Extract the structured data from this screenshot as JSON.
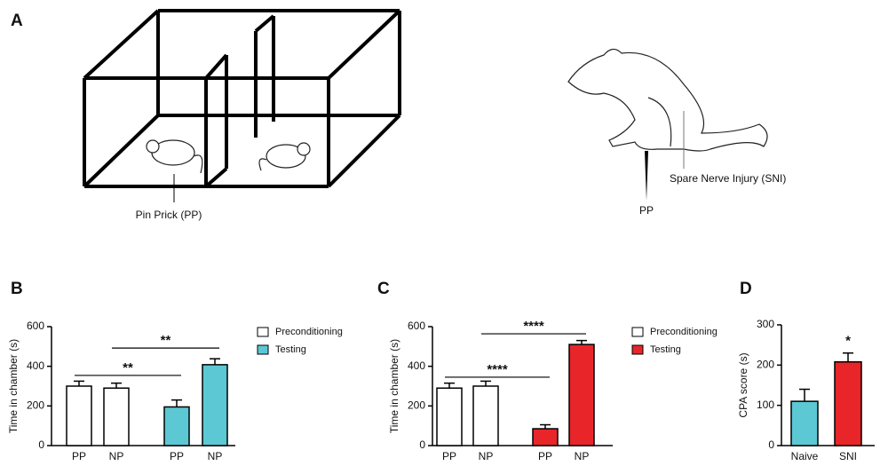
{
  "panel_a": {
    "label": "A",
    "left_caption": "Pin Prick (PP)",
    "right_pp": "PP",
    "right_caption": "Spare Nerve Injury (SNI)"
  },
  "chart_data": [
    {
      "type": "bar",
      "panel": "B",
      "ylabel": "Time in chamber (s)",
      "ylim": [
        0,
        600
      ],
      "yticks": [
        0,
        200,
        400,
        600
      ],
      "categories": [
        "PP",
        "NP",
        "PP",
        "NP"
      ],
      "series": [
        {
          "name": "Preconditioning",
          "color": "#ffffff",
          "values": [
            300,
            290,
            null,
            null
          ],
          "errors": [
            25,
            25,
            null,
            null
          ]
        },
        {
          "name": "Testing",
          "color": "#5bc8d4",
          "values": [
            null,
            null,
            195,
            408
          ],
          "errors": [
            null,
            null,
            35,
            30
          ]
        }
      ],
      "annotations": [
        {
          "text": "**",
          "from": 0,
          "to": 2,
          "y": 354
        },
        {
          "text": "**",
          "from": 1,
          "to": 3,
          "y": 492
        }
      ]
    },
    {
      "type": "bar",
      "panel": "C",
      "ylabel": "Time in chamber (s)",
      "ylim": [
        0,
        600
      ],
      "yticks": [
        0,
        200,
        400,
        600
      ],
      "categories": [
        "PP",
        "NP",
        "PP",
        "NP"
      ],
      "series": [
        {
          "name": "Preconditioning",
          "color": "#ffffff",
          "values": [
            290,
            300,
            null,
            null
          ],
          "errors": [
            25,
            25,
            null,
            null
          ]
        },
        {
          "name": "Testing",
          "color": "#e8262a",
          "values": [
            null,
            null,
            85,
            510
          ],
          "errors": [
            null,
            null,
            20,
            20
          ]
        }
      ],
      "annotations": [
        {
          "text": "****",
          "from": 0,
          "to": 2,
          "y": 345
        },
        {
          "text": "****",
          "from": 1,
          "to": 3,
          "y": 564
        }
      ]
    },
    {
      "type": "bar",
      "panel": "D",
      "ylabel": "CPA score (s)",
      "ylim": [
        0,
        300
      ],
      "yticks": [
        0,
        100,
        200,
        300
      ],
      "categories": [
        "Naive",
        "SNI"
      ],
      "series": [
        {
          "color": "#5bc8d4",
          "values": [
            110,
            null
          ],
          "errors": [
            30,
            null
          ]
        },
        {
          "color": "#e8262a",
          "values": [
            null,
            208
          ],
          "errors": [
            null,
            22
          ]
        }
      ],
      "annotations": [
        {
          "text": "*",
          "from": 1,
          "to": 1,
          "y": 242
        }
      ]
    }
  ]
}
